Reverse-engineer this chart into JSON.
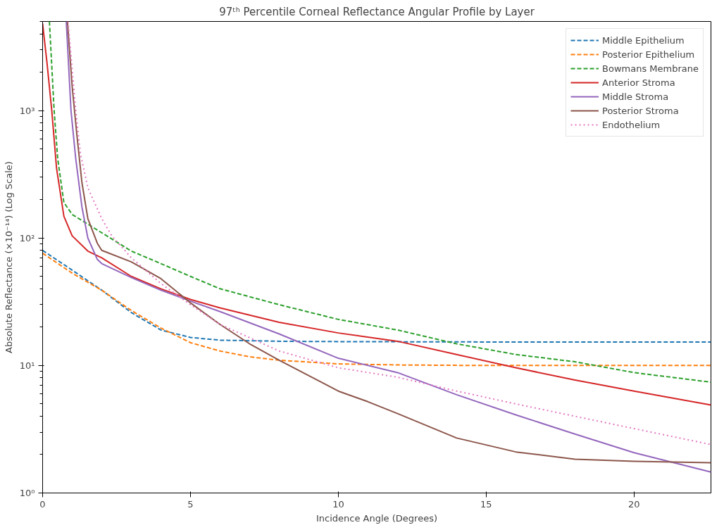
{
  "chart_data": {
    "type": "line",
    "title": "97ᵗʰ Percentile Corneal Reflectance Angular Profile by Layer",
    "xlabel": "Incidence Angle (Degrees)",
    "ylabel": "Absolute Reflectance (×10⁻¹⁴) (Log Scale)",
    "log": "y",
    "xlim": [
      0,
      22.6
    ],
    "ylim": [
      1,
      5000
    ],
    "xticks": [
      0,
      5,
      10,
      15,
      20
    ],
    "yticks": [
      {
        "value": 1,
        "label": "10⁰"
      },
      {
        "value": 10,
        "label": "10¹"
      },
      {
        "value": 100,
        "label": "10²"
      },
      {
        "value": 1000,
        "label": "10³"
      }
    ],
    "grid": false,
    "legend": "top right",
    "series": [
      {
        "name": "Middle Epithelium",
        "color": "#1f77b4",
        "line_style": "dashed",
        "x": [
          0,
          1,
          2,
          3,
          4,
          5,
          6,
          8,
          10,
          15,
          22.6
        ],
        "values": [
          80,
          56,
          39,
          26,
          19,
          16.6,
          15.8,
          15.5,
          15.4,
          15.3,
          15.3
        ]
      },
      {
        "name": "Posterior Epithelium",
        "color": "#ff7f0e",
        "line_style": "dashed",
        "x": [
          0,
          1,
          2,
          3,
          4,
          5,
          6,
          7,
          8,
          10,
          12,
          15,
          22.6
        ],
        "values": [
          76,
          53,
          39,
          27,
          19.7,
          15.1,
          13,
          11.7,
          11,
          10.3,
          10.1,
          10,
          10
        ]
      },
      {
        "name": "Bowmans Membrane",
        "color": "#2ca02c",
        "line_style": "dashed",
        "x": [
          0.23,
          0.39,
          0.51,
          0.72,
          1,
          2,
          3,
          4,
          5,
          6,
          8,
          10,
          12,
          14,
          16,
          18,
          20,
          22.6
        ],
        "values": [
          5000,
          1000,
          420,
          190,
          153,
          110,
          79,
          63,
          50,
          40,
          30,
          23,
          19,
          14.8,
          12.2,
          10.7,
          8.8,
          7.4
        ]
      },
      {
        "name": "Anterior Stroma",
        "color": "#d62728",
        "line_style": "solid",
        "x": [
          0,
          0.15,
          0.31,
          0.47,
          0.72,
          1,
          1.53,
          2,
          3,
          4,
          5,
          6,
          8,
          10,
          12,
          14,
          16,
          18,
          20,
          22.6
        ],
        "values": [
          4800,
          2350,
          1000,
          355,
          148,
          104,
          79,
          70,
          50,
          40,
          33,
          28.3,
          21.8,
          18,
          15.5,
          12.2,
          9.6,
          7.7,
          6.3,
          4.9
        ]
      },
      {
        "name": "Middle Stroma",
        "color": "#9467bd",
        "line_style": "solid",
        "x": [
          0.8,
          0.96,
          1.12,
          1.33,
          1.53,
          1.85,
          2,
          3,
          4,
          5,
          6,
          8,
          10,
          12,
          14,
          16,
          18,
          20,
          22.6
        ],
        "values": [
          5000,
          1000,
          420,
          175,
          100,
          68,
          63,
          49,
          39,
          32,
          26.5,
          17.7,
          11.4,
          8.8,
          5.9,
          4.1,
          2.9,
          2.07,
          1.46
        ]
      },
      {
        "name": "Posterior Stroma",
        "color": "#8c564b",
        "line_style": "solid",
        "x": [
          0.84,
          1,
          1.16,
          1.33,
          1.53,
          1.85,
          2,
          3,
          4,
          5,
          6,
          7,
          8,
          10,
          11,
          12,
          14,
          16,
          18,
          20,
          22.6
        ],
        "values": [
          5000,
          1540,
          640,
          272,
          142,
          91,
          80,
          65,
          48,
          31,
          21,
          14.8,
          11,
          6.3,
          5.2,
          4.2,
          2.7,
          2.1,
          1.84,
          1.77,
          1.73
        ]
      },
      {
        "name": "Endothelium",
        "color": "#e377c2",
        "line_style": "dotted",
        "x": [
          0.86,
          1.12,
          1.28,
          1.53,
          2,
          2.34,
          3,
          4,
          5,
          6,
          8,
          10,
          12,
          14,
          16,
          18,
          20,
          22.6
        ],
        "values": [
          5000,
          1000,
          458,
          248,
          142,
          104,
          70,
          44,
          30,
          21,
          13,
          9.6,
          8.1,
          6.3,
          5,
          4,
          3.2,
          2.4
        ]
      }
    ]
  }
}
